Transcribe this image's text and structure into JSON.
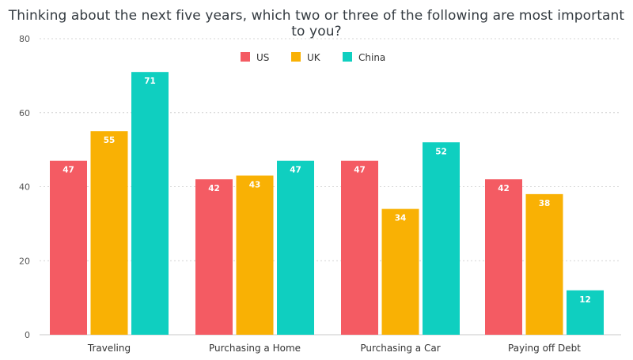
{
  "chart_data": {
    "type": "bar",
    "title": "Thinking about the next five years, which two or three of the following are most important to you?",
    "xlabel": "",
    "ylabel": "",
    "ylim": [
      0,
      80
    ],
    "yticks": [
      0,
      20,
      40,
      60,
      80
    ],
    "categories": [
      "Traveling",
      "Purchasing a Home",
      "Purchasing a Car",
      "Paying off Debt"
    ],
    "series": [
      {
        "name": "US",
        "color": "#f45b63",
        "values": [
          47,
          42,
          47,
          42
        ]
      },
      {
        "name": "UK",
        "color": "#f9b104",
        "values": [
          55,
          43,
          34,
          38
        ]
      },
      {
        "name": "China",
        "color": "#0fcfc0",
        "values": [
          71,
          47,
          52,
          12
        ]
      }
    ],
    "legend_position": "top-center",
    "grid": true,
    "data_labels": true
  }
}
